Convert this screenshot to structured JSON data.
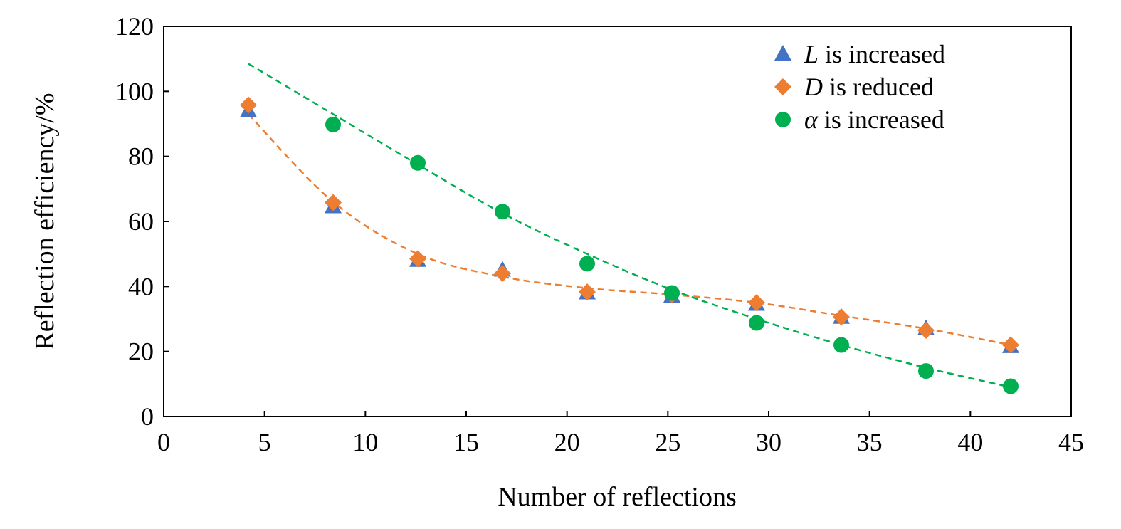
{
  "chart_data": {
    "type": "scatter",
    "title": "",
    "xlabel": "Number of reflections",
    "ylabel": "Reflection efficiency/%",
    "xlim": [
      0,
      45
    ],
    "ylim": [
      0,
      120
    ],
    "xticks": [
      0,
      5,
      10,
      15,
      20,
      25,
      30,
      35,
      40,
      45
    ],
    "yticks": [
      0,
      20,
      40,
      60,
      80,
      100,
      120
    ],
    "grid": false,
    "legend_position": "top-right",
    "series": [
      {
        "name_var": "L",
        "name_rest": " is increased",
        "marker": "triangle",
        "color": "#4472c4",
        "x": [
          4.2,
          8.4,
          12.6,
          16.8,
          21,
          25.2,
          29.4,
          33.6,
          37.8,
          42
        ],
        "y": [
          94,
          64.5,
          48,
          45,
          38,
          37,
          34.5,
          30.5,
          27,
          21.5
        ]
      },
      {
        "name_var": "D",
        "name_rest": " is reduced",
        "marker": "diamond",
        "color": "#ed7d31",
        "x": [
          4.2,
          8.4,
          12.6,
          16.8,
          21,
          25.2,
          29.4,
          33.6,
          37.8,
          42
        ],
        "y": [
          95.8,
          65.8,
          48.5,
          44,
          38.3,
          37.5,
          35,
          30.6,
          26.5,
          22
        ],
        "trendline": {
          "style": "dashed",
          "x": [
            4.2,
            8.4,
            12.6,
            16.8,
            21,
            25.2,
            29.4,
            33.6,
            37.8,
            42
          ],
          "y": [
            93,
            66,
            50,
            43,
            39.5,
            37.5,
            35,
            31,
            27,
            22
          ]
        }
      },
      {
        "name_var": "α",
        "name_rest": " is increased",
        "marker": "circle",
        "color": "#00b050",
        "x": [
          8.4,
          12.6,
          16.8,
          21,
          25.2,
          29.4,
          33.6,
          37.8,
          42
        ],
        "y": [
          89.8,
          78,
          63,
          47,
          38,
          28.8,
          22,
          14,
          9.3
        ],
        "trendline": {
          "style": "dashed",
          "x": [
            4.2,
            8.4,
            12.6,
            16.8,
            21,
            25.2,
            29.4,
            33.6,
            37.8,
            42
          ],
          "y": [
            108.5,
            93,
            77.5,
            62.5,
            50,
            39,
            30,
            22,
            15,
            9
          ]
        }
      }
    ]
  }
}
